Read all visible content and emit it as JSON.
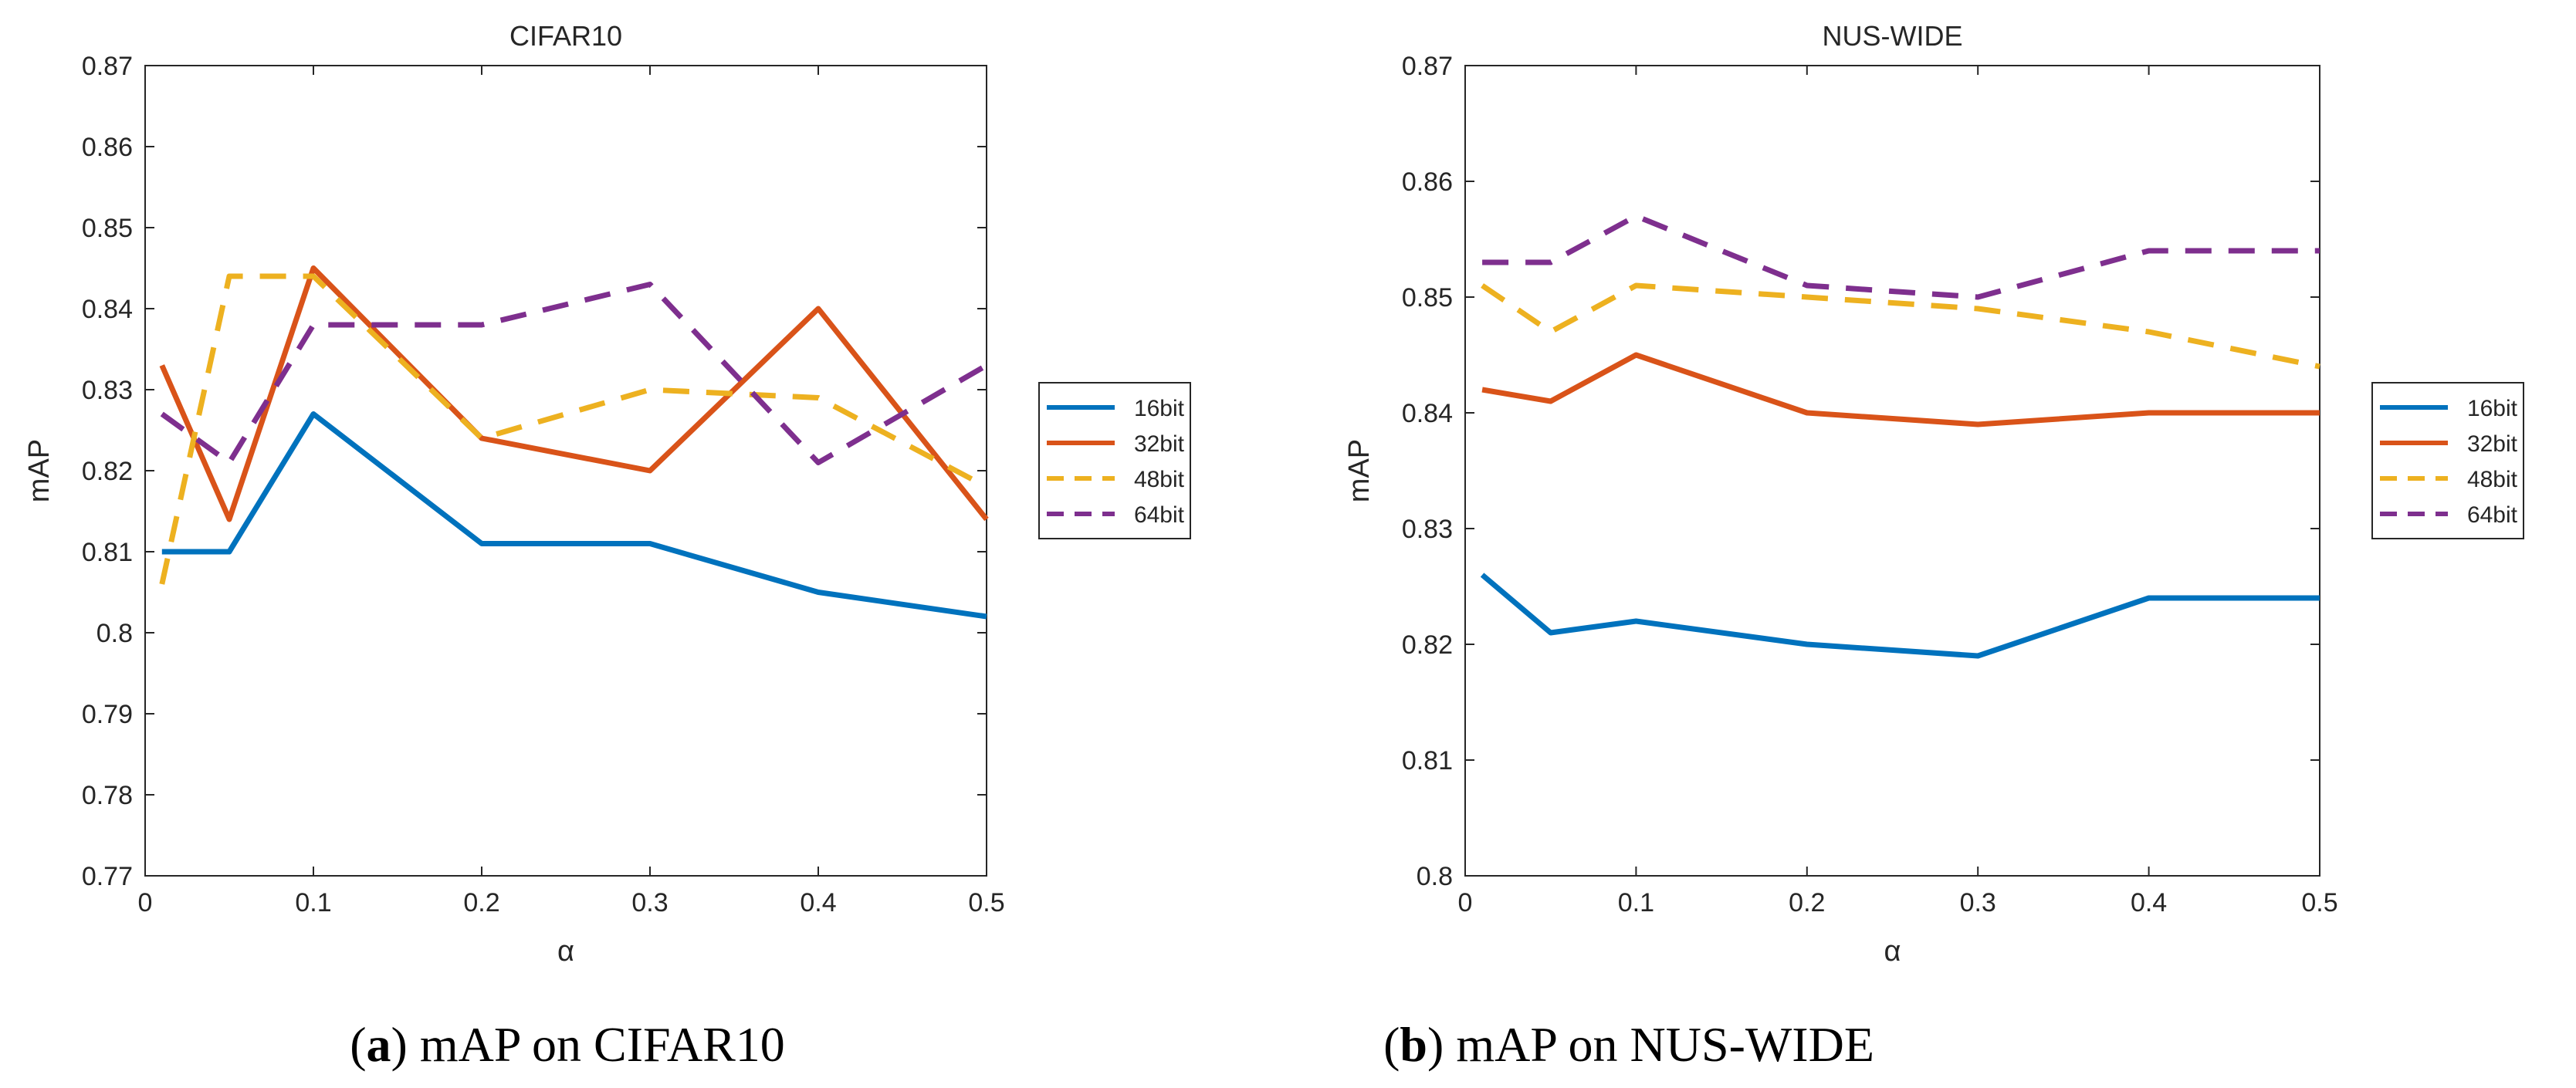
{
  "colors": {
    "16bit": "#0072BD",
    "32bit": "#D95319",
    "48bit": "#EDB120",
    "64bit": "#7E2F8E",
    "axis": "#262626"
  },
  "chart_data": [
    {
      "type": "line",
      "title": "CIFAR10",
      "xlabel": "α",
      "ylabel": "mAP",
      "xlim": [
        0,
        0.5
      ],
      "ylim": [
        0.77,
        0.87
      ],
      "xticks": [
        "0",
        "0.1",
        "0.2",
        "0.3",
        "0.4",
        "0.5"
      ],
      "yticks": [
        "0.77",
        "0.78",
        "0.79",
        "0.8",
        "0.81",
        "0.82",
        "0.83",
        "0.84",
        "0.85",
        "0.86",
        "0.87"
      ],
      "grid": false,
      "legend": "outside-right",
      "x": [
        0.01,
        0.05,
        0.1,
        0.2,
        0.3,
        0.4,
        0.5
      ],
      "series": [
        {
          "name": "16bit",
          "style": "solid",
          "values": [
            0.81,
            0.81,
            0.827,
            0.811,
            0.811,
            0.805,
            0.802
          ]
        },
        {
          "name": "32bit",
          "style": "solid",
          "values": [
            0.833,
            0.814,
            0.845,
            0.824,
            0.82,
            0.84,
            0.814
          ]
        },
        {
          "name": "48bit",
          "style": "dashed",
          "values": [
            0.806,
            0.844,
            0.844,
            0.824,
            0.83,
            0.829,
            0.818
          ]
        },
        {
          "name": "64bit",
          "style": "dashed",
          "values": [
            0.827,
            0.821,
            0.838,
            0.838,
            0.843,
            0.821,
            0.833
          ]
        }
      ],
      "caption_label": "a",
      "caption_text": "mAP on CIFAR10"
    },
    {
      "type": "line",
      "title": "NUS-WIDE",
      "xlabel": "α",
      "ylabel": "mAP",
      "xlim": [
        0,
        0.5
      ],
      "ylim": [
        0.8,
        0.87
      ],
      "xticks": [
        "0",
        "0.1",
        "0.2",
        "0.3",
        "0.4",
        "0.5"
      ],
      "yticks": [
        "0.8",
        "0.81",
        "0.82",
        "0.83",
        "0.84",
        "0.85",
        "0.86",
        "0.87"
      ],
      "grid": false,
      "legend": "outside-right",
      "x": [
        0.01,
        0.05,
        0.1,
        0.2,
        0.3,
        0.4,
        0.5
      ],
      "series": [
        {
          "name": "16bit",
          "style": "solid",
          "values": [
            0.826,
            0.821,
            0.822,
            0.82,
            0.819,
            0.824,
            0.824
          ]
        },
        {
          "name": "32bit",
          "style": "solid",
          "values": [
            0.842,
            0.841,
            0.845,
            0.84,
            0.839,
            0.84,
            0.84
          ]
        },
        {
          "name": "48bit",
          "style": "dashed",
          "values": [
            0.851,
            0.847,
            0.851,
            0.85,
            0.849,
            0.847,
            0.844
          ]
        },
        {
          "name": "64bit",
          "style": "dashed",
          "values": [
            0.853,
            0.853,
            0.857,
            0.851,
            0.85,
            0.854,
            0.854
          ]
        }
      ],
      "caption_label": "b",
      "caption_text": "mAP on NUS-WIDE"
    }
  ]
}
